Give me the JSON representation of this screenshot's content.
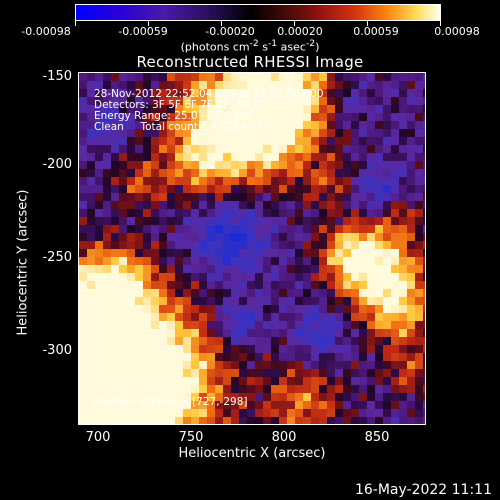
{
  "colorbar": {
    "ticks": [
      "-0.00098",
      "-0.00059",
      "-0.00020",
      "0.00020",
      "0.00059",
      "0.00098"
    ],
    "unit_html": "(photons cm<sup>-2</sup> s<sup>-1</sup> asec<sup>-2</sup>)"
  },
  "title": "Reconstructed RHESSI Image",
  "info": {
    "line1": "28-Nov-2012 22:52:04.000 to 22:53:56.000",
    "line2": "Detectors: 3F 5F 6F 7F 8F, Att 0",
    "line3": "Energy Range: 25.0 - 50.0 keV",
    "line4": "Clean     Total counts: 4.82E+03",
    "peak": "Position of Peak = [727,-298]"
  },
  "axes": {
    "xlabel": "Heliocentric X (arcsec)",
    "ylabel": "Heliocentric Y (arcsec)",
    "xticks": [
      "700",
      "750",
      "800",
      "850"
    ],
    "yticks": [
      "-150",
      "-200",
      "-250",
      "-300"
    ]
  },
  "footer": "16-May-2022 11:11"
}
